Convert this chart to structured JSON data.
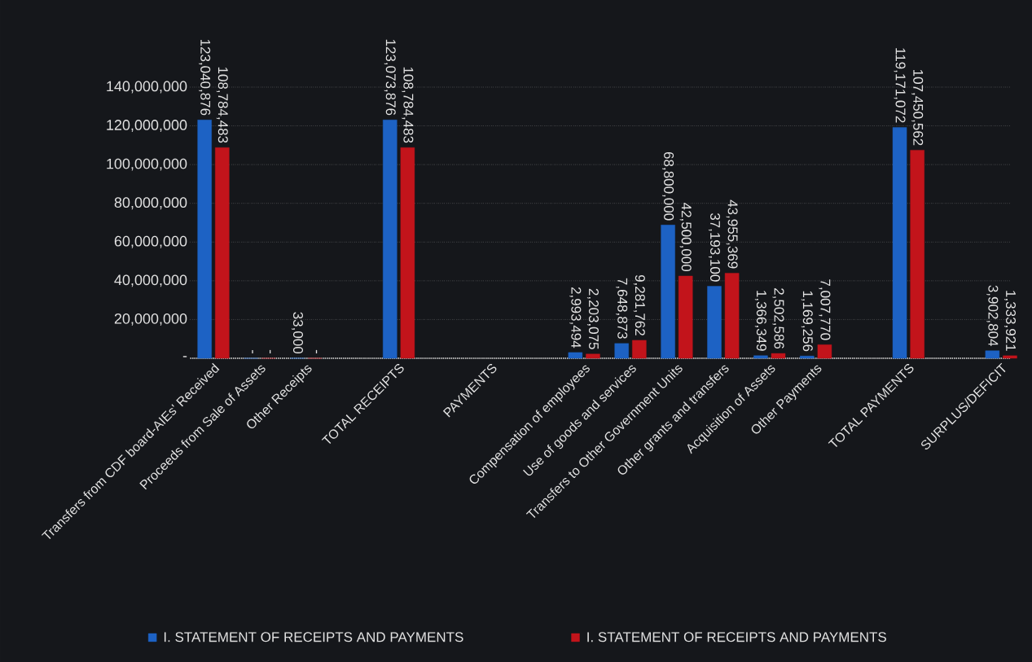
{
  "chart_data": {
    "type": "bar",
    "categories": [
      "Transfers from CDF board-AIEs' Received",
      "Proceeds from Sale of Assets",
      "Other Receipts",
      null,
      "TOTAL RECEIPTS",
      null,
      "PAYMENTS",
      null,
      "Compensation of employees",
      "Use of goods and services",
      "Transfers to Other Government Units",
      "Other grants and transfers",
      "Acquisition of Assets",
      "Other Payments",
      null,
      "TOTAL PAYMENTS",
      null,
      "SURPLUS/DEFICIT"
    ],
    "series": [
      {
        "name": "I. STATEMENT OF RECEIPTS AND PAYMENTS",
        "color": "#1d62c4",
        "values": [
          123040876,
          0,
          33000,
          null,
          123073876,
          null,
          null,
          null,
          2993494,
          7648873,
          68800000,
          37193100,
          1366349,
          1169256,
          null,
          119171072,
          null,
          3902804
        ],
        "value_labels": [
          "123,040,876",
          "-",
          "33,000",
          null,
          "123,073,876",
          null,
          null,
          null,
          "2,993,494",
          "7,648,873",
          "68,800,000",
          "37,193,100",
          "1,366,349",
          "1,169,256",
          null,
          "119,171,072",
          null,
          "3,902,804"
        ]
      },
      {
        "name": "I. STATEMENT OF RECEIPTS AND PAYMENTS",
        "color": "#c2141b",
        "values": [
          108784483,
          0,
          0,
          null,
          108784483,
          null,
          null,
          null,
          2203075,
          9281762,
          42500000,
          43955369,
          2502586,
          7007770,
          null,
          107450562,
          null,
          1333921
        ],
        "value_labels": [
          "108,784,483",
          "-",
          "-",
          null,
          "108,784,483",
          null,
          null,
          null,
          "2,203,075",
          "9,281,762",
          "42,500,000",
          "43,955,369",
          "2,502,586",
          "7,007,770",
          null,
          "107,450,562",
          null,
          "1,333,921"
        ]
      }
    ],
    "ylim": [
      0,
      140000000
    ],
    "yticks": [
      {
        "value": 0,
        "label": "-"
      },
      {
        "value": 20000000,
        "label": "20,000,000"
      },
      {
        "value": 40000000,
        "label": "40,000,000"
      },
      {
        "value": 60000000,
        "label": "60,000,000"
      },
      {
        "value": 80000000,
        "label": "80,000,000"
      },
      {
        "value": 100000000,
        "label": "100,000,000"
      },
      {
        "value": 120000000,
        "label": "120,000,000"
      },
      {
        "value": 140000000,
        "label": "140,000,000"
      }
    ],
    "grid": "y",
    "legend": "bottom"
  }
}
